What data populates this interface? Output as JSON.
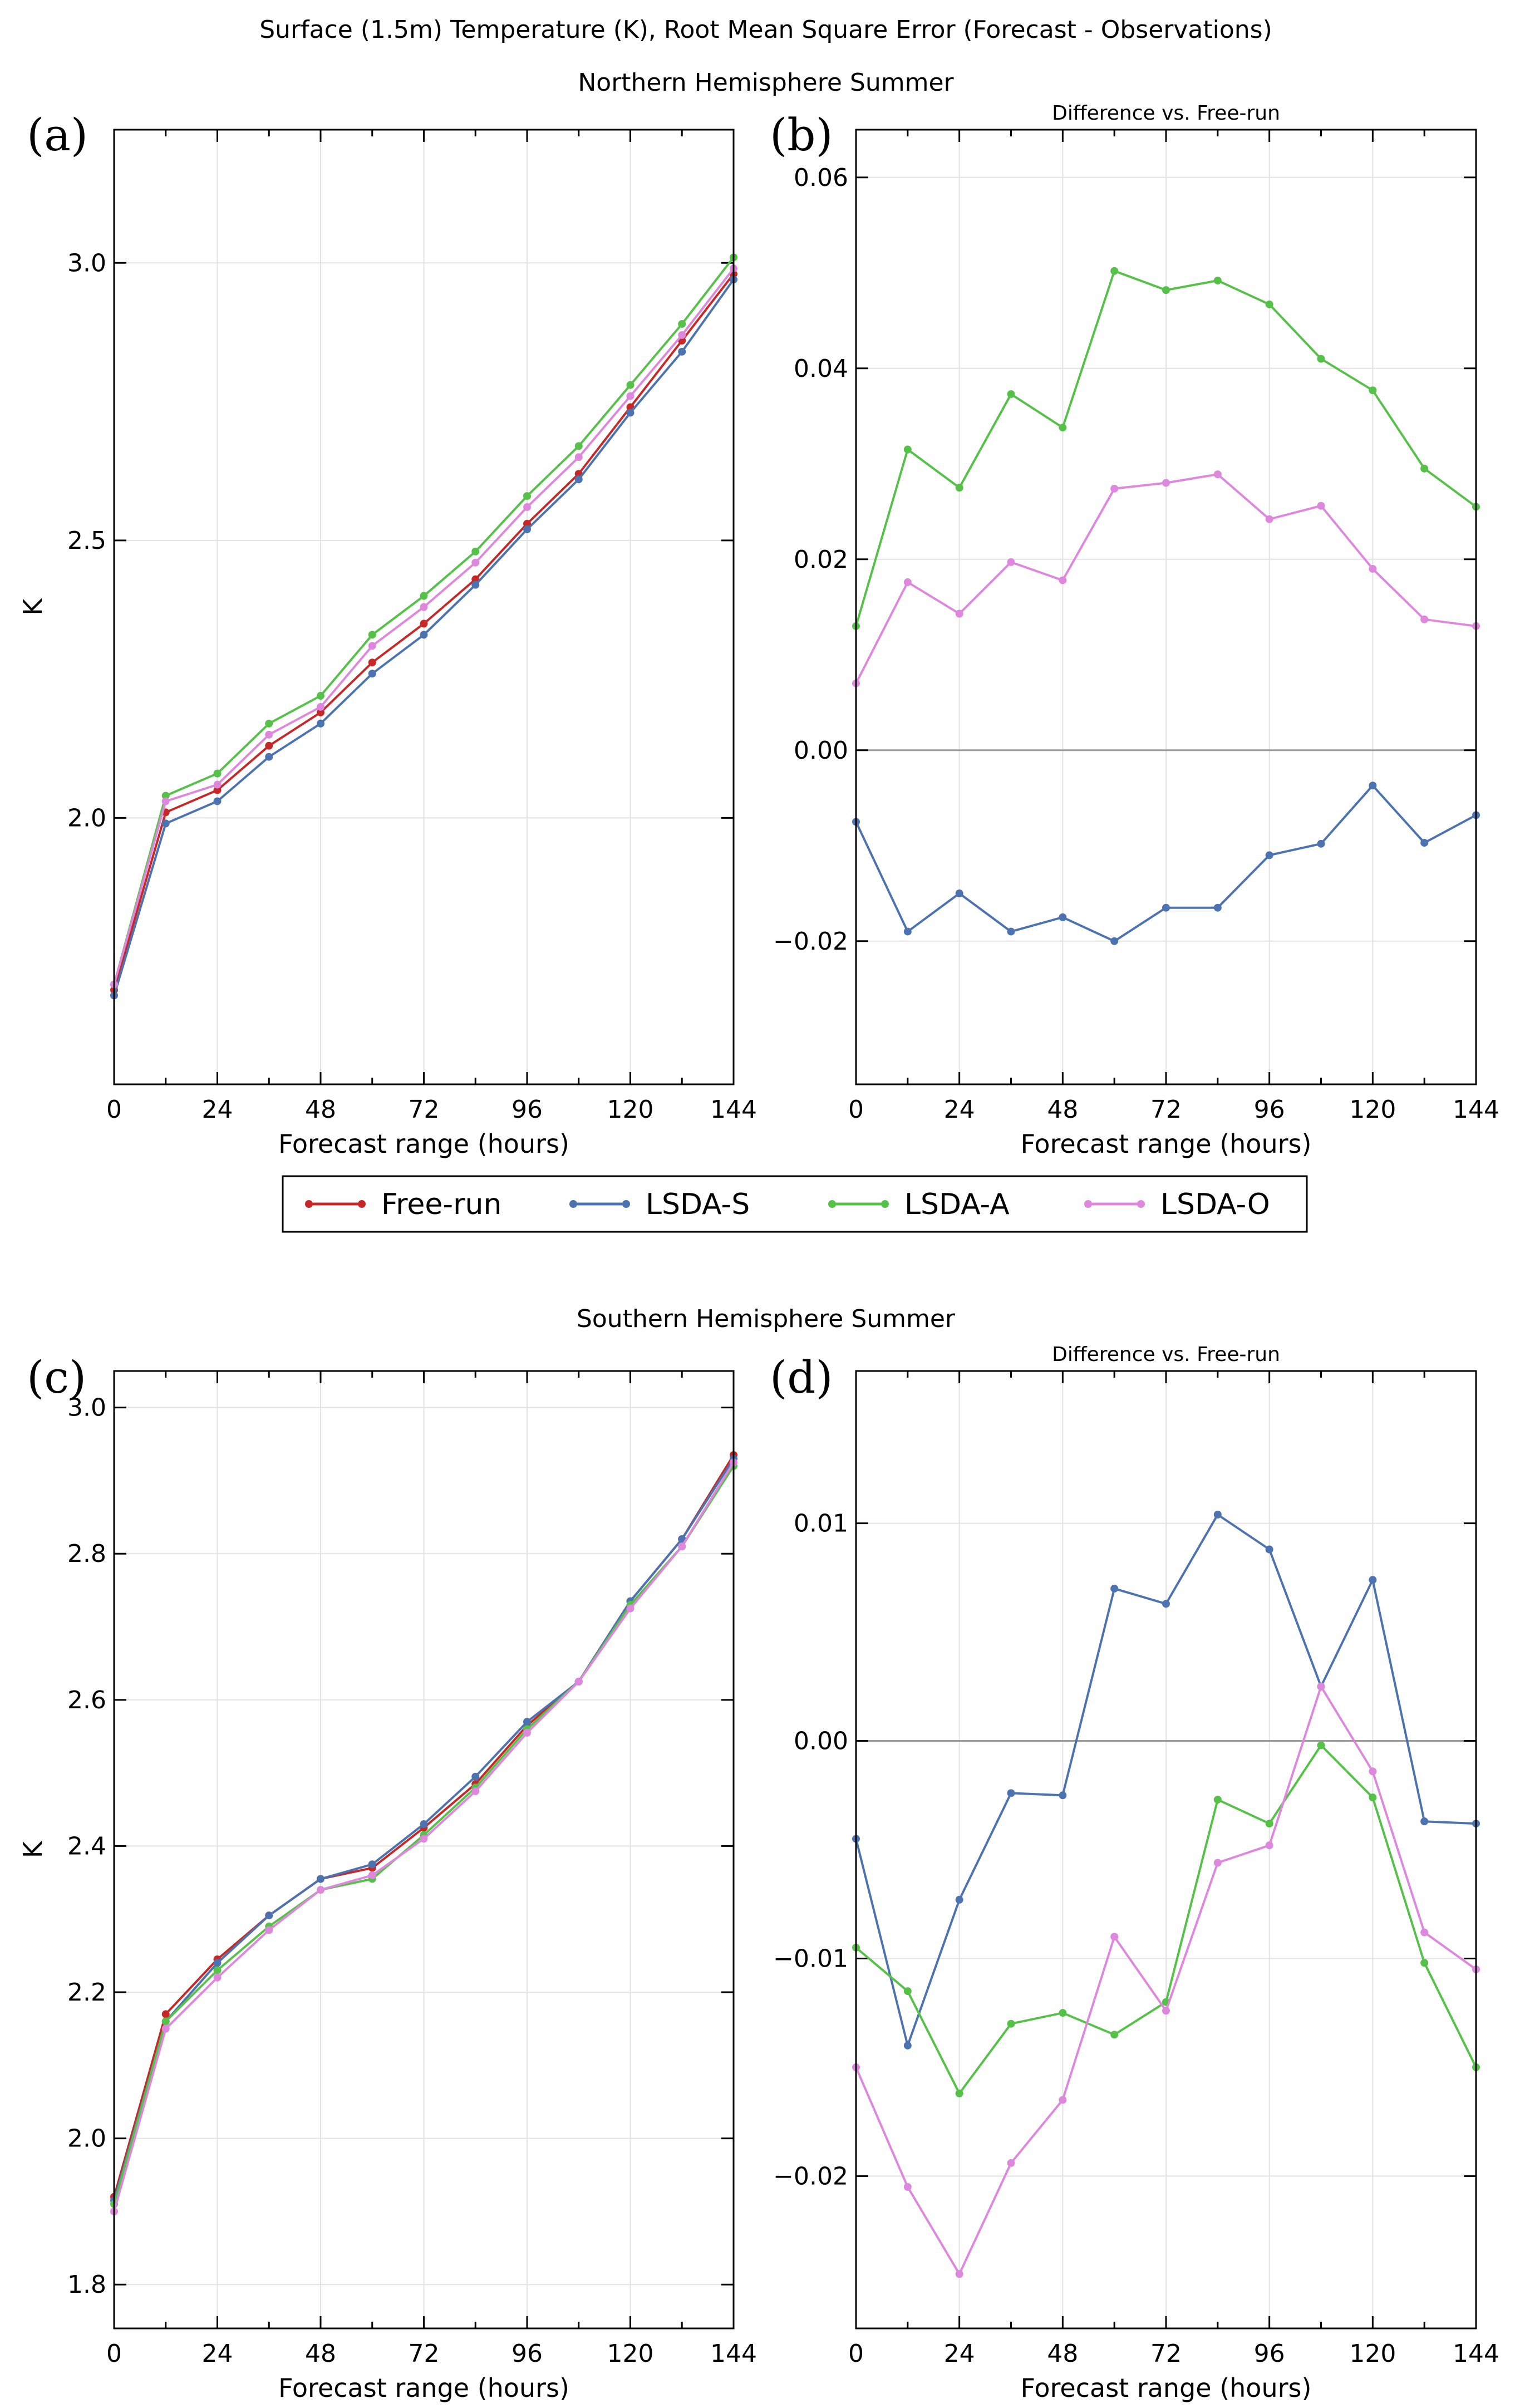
{
  "figure": {
    "title": "Surface (1.5m) Temperature (K), Root Mean Square Error (Forecast - Observations)",
    "nh_title": "Northern Hemisphere Summer",
    "sh_title": "Southern Hemisphere Summer"
  },
  "legend": [
    {
      "name": "Free-run",
      "color": "#c62828"
    },
    {
      "name": "LSDA-S",
      "color": "#4c72b0"
    },
    {
      "name": "LSDA-A",
      "color": "#55c148"
    },
    {
      "name": "LSDA-O",
      "color": "#dd88dd"
    }
  ],
  "chart_data": [
    {
      "panel": "(a)",
      "type": "line",
      "title": "",
      "xlabel": "Forecast range (hours)",
      "ylabel": "K",
      "xlim": [
        0,
        144
      ],
      "ylim": [
        1.52,
        3.24
      ],
      "xticks": [
        "0",
        "24",
        "48",
        "72",
        "96",
        "120",
        "144"
      ],
      "yticks": [
        "2.0",
        "2.5",
        "3.0"
      ],
      "grid": true,
      "x": [
        0,
        12,
        24,
        36,
        48,
        60,
        72,
        84,
        96,
        108,
        120,
        132,
        144
      ],
      "series": [
        {
          "name": "Free-run",
          "color": "#c62828",
          "values": [
            1.69,
            2.01,
            2.05,
            2.13,
            2.19,
            2.28,
            2.35,
            2.43,
            2.53,
            2.62,
            2.74,
            2.86,
            2.98
          ]
        },
        {
          "name": "LSDA-S",
          "color": "#4c72b0",
          "values": [
            1.68,
            1.99,
            2.03,
            2.11,
            2.17,
            2.26,
            2.33,
            2.42,
            2.52,
            2.61,
            2.73,
            2.84,
            2.97
          ]
        },
        {
          "name": "LSDA-A",
          "color": "#55c148",
          "values": [
            1.7,
            2.04,
            2.08,
            2.17,
            2.22,
            2.33,
            2.4,
            2.48,
            2.58,
            2.67,
            2.78,
            2.89,
            3.01
          ]
        },
        {
          "name": "LSDA-O",
          "color": "#dd88dd",
          "values": [
            1.7,
            2.03,
            2.06,
            2.15,
            2.2,
            2.31,
            2.38,
            2.46,
            2.56,
            2.65,
            2.76,
            2.87,
            2.99
          ]
        }
      ]
    },
    {
      "panel": "(b)",
      "type": "line",
      "title": "Difference vs. Free-run",
      "xlabel": "Forecast range (hours)",
      "ylabel": "",
      "xlim": [
        0,
        144
      ],
      "ylim": [
        -0.035,
        0.065
      ],
      "xticks": [
        "0",
        "24",
        "48",
        "72",
        "96",
        "120",
        "144"
      ],
      "yticks": [
        "−0.02",
        "0.00",
        "0.02",
        "0.04",
        "0.06"
      ],
      "grid": true,
      "x": [
        0,
        12,
        24,
        36,
        48,
        60,
        72,
        84,
        96,
        108,
        120,
        132,
        144
      ],
      "series": [
        {
          "name": "LSDA-S",
          "color": "#4c72b0",
          "values": [
            -0.0075,
            -0.019,
            -0.015,
            -0.019,
            -0.0175,
            -0.02,
            -0.0165,
            -0.0165,
            -0.011,
            -0.0098,
            -0.0037,
            -0.0097,
            -0.0068
          ]
        },
        {
          "name": "LSDA-A",
          "color": "#55c148",
          "values": [
            0.013,
            0.0315,
            0.0275,
            0.0373,
            0.0338,
            0.0502,
            0.0482,
            0.0492,
            0.0467,
            0.041,
            0.0377,
            0.0295,
            0.0255
          ]
        },
        {
          "name": "LSDA-O",
          "color": "#dd88dd",
          "values": [
            0.007,
            0.0176,
            0.0143,
            0.0197,
            0.0178,
            0.0274,
            0.028,
            0.0289,
            0.0242,
            0.0256,
            0.019,
            0.0137,
            0.013
          ]
        }
      ]
    },
    {
      "panel": "(c)",
      "type": "line",
      "title": "",
      "xlabel": "Forecast range (hours)",
      "ylabel": "K",
      "xlim": [
        0,
        144
      ],
      "ylim": [
        1.74,
        3.05
      ],
      "xticks": [
        "0",
        "24",
        "48",
        "72",
        "96",
        "120",
        "144"
      ],
      "yticks": [
        "1.8",
        "2.0",
        "2.2",
        "2.4",
        "2.6",
        "2.8",
        "3.0"
      ],
      "grid": true,
      "x": [
        0,
        12,
        24,
        36,
        48,
        60,
        72,
        84,
        96,
        108,
        120,
        132,
        144
      ],
      "series": [
        {
          "name": "Free-run",
          "color": "#c62828",
          "values": [
            1.92,
            2.17,
            2.245,
            2.305,
            2.355,
            2.37,
            2.425,
            2.485,
            2.565,
            2.625,
            2.735,
            2.82,
            2.935
          ]
        },
        {
          "name": "LSDA-S",
          "color": "#4c72b0",
          "values": [
            1.915,
            2.16,
            2.24,
            2.305,
            2.355,
            2.375,
            2.43,
            2.495,
            2.57,
            2.625,
            2.735,
            2.82,
            2.93
          ]
        },
        {
          "name": "LSDA-A",
          "color": "#55c148",
          "values": [
            1.91,
            2.16,
            2.23,
            2.29,
            2.34,
            2.355,
            2.415,
            2.48,
            2.56,
            2.625,
            2.73,
            2.81,
            2.92
          ]
        },
        {
          "name": "LSDA-O",
          "color": "#dd88dd",
          "values": [
            1.9,
            2.15,
            2.22,
            2.285,
            2.34,
            2.36,
            2.41,
            2.475,
            2.555,
            2.625,
            2.725,
            2.81,
            2.925
          ]
        }
      ]
    },
    {
      "panel": "(d)",
      "type": "line",
      "title": "Difference vs. Free-run",
      "xlabel": "Forecast range (hours)",
      "ylabel": "",
      "xlim": [
        0,
        144
      ],
      "ylim": [
        -0.027,
        0.017
      ],
      "xticks": [
        "0",
        "24",
        "48",
        "72",
        "96",
        "120",
        "144"
      ],
      "yticks": [
        "−0.02",
        "−0.01",
        "0.00",
        "0.01"
      ],
      "grid": true,
      "x": [
        0,
        12,
        24,
        36,
        48,
        60,
        72,
        84,
        96,
        108,
        120,
        132,
        144
      ],
      "series": [
        {
          "name": "LSDA-S",
          "color": "#4c72b0",
          "values": [
            -0.0045,
            -0.014,
            -0.0073,
            -0.0024,
            -0.0025,
            0.007,
            0.0063,
            0.0104,
            0.0088,
            0.0025,
            0.0074,
            -0.0037,
            -0.0038
          ]
        },
        {
          "name": "LSDA-A",
          "color": "#55c148",
          "values": [
            -0.0095,
            -0.0115,
            -0.0162,
            -0.013,
            -0.0125,
            -0.0135,
            -0.012,
            -0.0027,
            -0.0038,
            -0.0002,
            -0.0026,
            -0.0102,
            -0.015
          ]
        },
        {
          "name": "LSDA-O",
          "color": "#dd88dd",
          "values": [
            -0.015,
            -0.0205,
            -0.0245,
            -0.0194,
            -0.0165,
            -0.009,
            -0.0124,
            -0.0056,
            -0.0048,
            0.0025,
            -0.0014,
            -0.0088,
            -0.0105
          ]
        }
      ]
    }
  ]
}
